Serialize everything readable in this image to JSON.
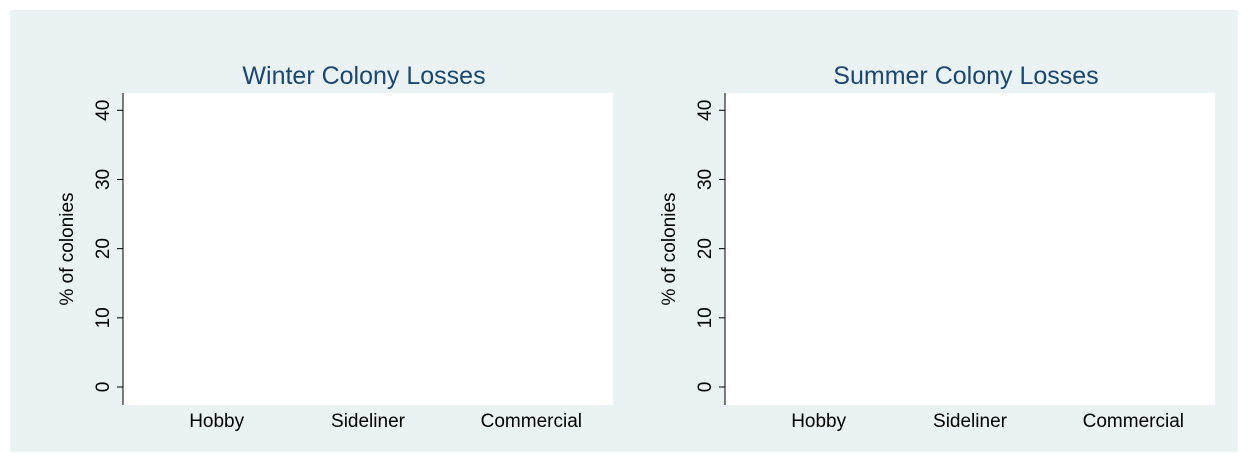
{
  "chart_data": [
    {
      "type": "bar",
      "title": "Winter Colony Losses",
      "ylabel": "% of colonies",
      "categories": [
        "Hobby",
        "Sideliner",
        "Commercial"
      ],
      "ylim": [
        -2.6,
        42.5
      ],
      "yticks": [
        0,
        10,
        20,
        30,
        40
      ]
    },
    {
      "type": "bar",
      "title": "Summer Colony Losses",
      "ylabel": "% of colonies",
      "categories": [
        "Hobby",
        "Sideliner",
        "Commercial"
      ],
      "ylim": [
        -2.6,
        42.5
      ],
      "yticks": [
        0,
        10,
        20,
        30,
        40
      ]
    }
  ]
}
